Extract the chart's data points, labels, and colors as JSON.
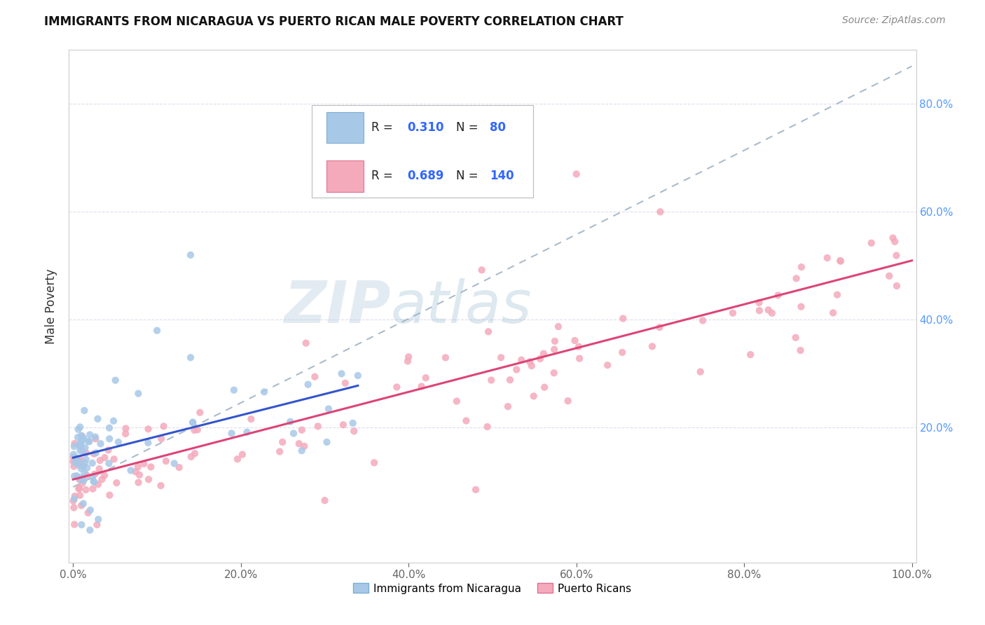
{
  "title": "IMMIGRANTS FROM NICARAGUA VS PUERTO RICAN MALE POVERTY CORRELATION CHART",
  "source": "Source: ZipAtlas.com",
  "ylabel": "Male Poverty",
  "xlim": [
    -0.005,
    1.005
  ],
  "ylim": [
    -0.05,
    0.9
  ],
  "x_tick_vals": [
    0.0,
    0.2,
    0.4,
    0.6,
    0.8,
    1.0
  ],
  "x_tick_labels": [
    "0.0%",
    "20.0%",
    "40.0%",
    "60.0%",
    "80.0%",
    "100.0%"
  ],
  "y_tick_vals": [
    0.2,
    0.4,
    0.6,
    0.8
  ],
  "right_y_tick_labels": [
    "20.0%",
    "40.0%",
    "60.0%",
    "80.0%"
  ],
  "legend_r1": "R = 0.310",
  "legend_n1": "N =  80",
  "legend_r2": "R = 0.689",
  "legend_n2": "N = 140",
  "color_blue_fill": "#A8C8E8",
  "color_blue_edge": "#7AAFD4",
  "color_pink_fill": "#F4AABB",
  "color_pink_edge": "#E07090",
  "line_blue_color": "#3355CC",
  "line_pink_color": "#DD4477",
  "line_dashed_color": "#AABBCC",
  "label1": "Immigrants from Nicaragua",
  "label2": "Puerto Ricans",
  "background_color": "#FFFFFF",
  "grid_color": "#DDDDEE",
  "right_tick_color": "#5599FF",
  "title_color": "#111111",
  "source_color": "#888888",
  "watermark_zip_color": "#C8D8E8",
  "watermark_atlas_color": "#B0CCE0"
}
